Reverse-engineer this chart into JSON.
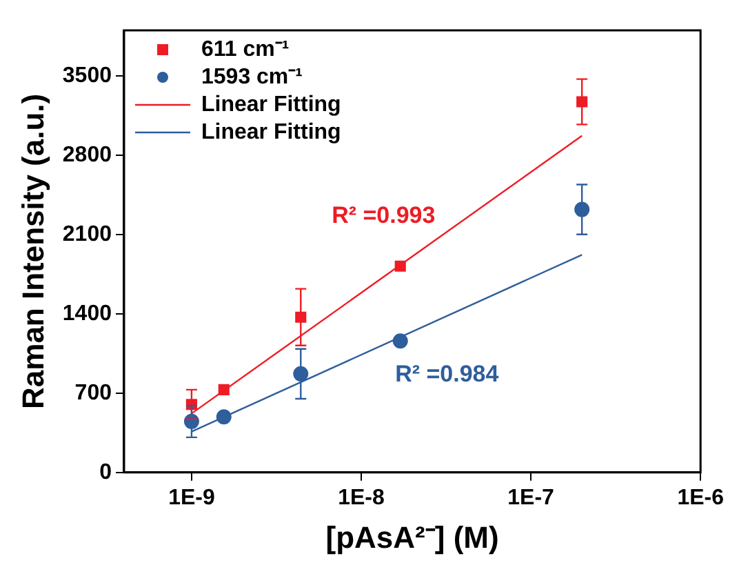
{
  "chart_data": {
    "type": "scatter",
    "xlabel": "[pAsA²⁻] (M)",
    "ylabel": "Raman Intensity (a.u.)",
    "log": "x",
    "xlim": [
      4e-10,
      1e-06
    ],
    "xticks": [
      {
        "value": 1e-09,
        "label": "1E-9"
      },
      {
        "value": 1e-08,
        "label": "1E-8"
      },
      {
        "value": 1e-07,
        "label": "1E-7"
      },
      {
        "value": 1e-06,
        "label": "1E-6"
      }
    ],
    "ylim": [
      0,
      3900
    ],
    "yticks": [
      0,
      700,
      1400,
      2100,
      2800,
      3500
    ],
    "grid": false,
    "legend": "top left",
    "x": [
      1e-09,
      1.55e-09,
      4.4e-09,
      1.7e-08,
      2e-07
    ],
    "series": [
      {
        "name": "611 cm⁻¹",
        "color": "#ee1c25",
        "marker": "square",
        "values": [
          600,
          730,
          1370,
          1820,
          3270
        ],
        "errors": [
          130,
          null,
          250,
          null,
          200
        ]
      },
      {
        "name": "1593 cm⁻¹",
        "color": "#2e5e9c",
        "marker": "circle",
        "values": [
          450,
          490,
          870,
          1160,
          2320
        ],
        "errors": [
          140,
          null,
          220,
          null,
          220
        ]
      },
      {
        "name": "Linear Fitting",
        "type": "line",
        "color": "#ee1c25",
        "marker": "none",
        "line_style": "solid",
        "values": [
          520,
          null,
          null,
          null,
          2970
        ]
      },
      {
        "name": "Linear Fitting",
        "type": "line",
        "color": "#2e5e9c",
        "marker": "none",
        "line_style": "solid",
        "values": [
          360,
          null,
          null,
          null,
          1920
        ]
      }
    ],
    "annotations": [
      "R² =0.993",
      "R² =0.984"
    ]
  }
}
